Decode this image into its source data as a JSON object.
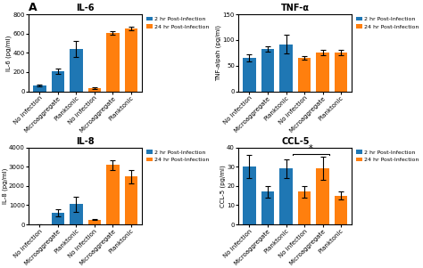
{
  "chart_data": [
    {
      "type": "bar",
      "title": "IL-6",
      "y_label": "IL-6 (pg/ml)",
      "categories": [
        "No infection",
        "Microaggregate",
        "Planktonic",
        "No infection",
        "Microaggregate",
        "Planktonic"
      ],
      "series": [
        {
          "name": "2 hr Post-Infection",
          "values": [
            60,
            210,
            440,
            null,
            null,
            null
          ],
          "errors": [
            12,
            25,
            80,
            null,
            null,
            null
          ]
        },
        {
          "name": "24 hr Post-Infection",
          "values": [
            null,
            null,
            null,
            30,
            605,
            650
          ],
          "errors": [
            null,
            null,
            null,
            8,
            18,
            18
          ]
        }
      ],
      "ylim": [
        0,
        800
      ],
      "yticks": [
        0,
        200,
        400,
        600,
        800
      ],
      "legend": "upper right",
      "annotations": [
        {
          "text": "A"
        }
      ]
    },
    {
      "type": "bar",
      "title": "TNF-α",
      "y_label": "TNF-alpah (pg/ml)",
      "categories": [
        "No infection",
        "Microaggregate",
        "Planktonic",
        "No infection",
        "Microaggregate",
        "Planktonic"
      ],
      "series": [
        {
          "name": "2 hr Post-Infection",
          "values": [
            65,
            83,
            92,
            null,
            null,
            null
          ],
          "errors": [
            7,
            5,
            18,
            null,
            null,
            null
          ]
        },
        {
          "name": "24 hr Post-Infection",
          "values": [
            null,
            null,
            null,
            65,
            76,
            76
          ],
          "errors": [
            null,
            null,
            null,
            3,
            5,
            5
          ]
        }
      ],
      "ylim": [
        0,
        150
      ],
      "yticks": [
        0,
        50,
        100,
        150
      ],
      "legend": "upper right"
    },
    {
      "type": "bar",
      "title": "IL-8",
      "y_label": "IL-8 (pg/ml)",
      "categories": [
        "No infection",
        "Microaggregate",
        "Planktonic",
        "No infection",
        "Microaggregate",
        "Planktonic"
      ],
      "series": [
        {
          "name": "2 hr Post-Infection",
          "values": [
            5,
            620,
            1050,
            null,
            null,
            null
          ],
          "errors": [
            2,
            180,
            380,
            null,
            null,
            null
          ]
        },
        {
          "name": "24 hr Post-Infection",
          "values": [
            null,
            null,
            null,
            250,
            3100,
            2500
          ],
          "errors": [
            null,
            null,
            null,
            30,
            250,
            350
          ]
        }
      ],
      "ylim": [
        0,
        4000
      ],
      "yticks": [
        0,
        1000,
        2000,
        3000,
        4000
      ],
      "legend": "upper right"
    },
    {
      "type": "bar",
      "title": "CCL-5",
      "y_label": "CCL-5 (pg/ml)",
      "categories": [
        "No infection",
        "Microaggregate",
        "Planktonic",
        "No infection",
        "Microaggregate",
        "Planktonic"
      ],
      "series": [
        {
          "name": "2 hr Post-Infection",
          "values": [
            30,
            17,
            29,
            null,
            null,
            null
          ],
          "errors": [
            6,
            3,
            5,
            null,
            null,
            null
          ]
        },
        {
          "name": "24 hr Post-Infection",
          "values": [
            null,
            null,
            null,
            17,
            29,
            15
          ],
          "errors": [
            null,
            null,
            null,
            3,
            6,
            2
          ]
        }
      ],
      "ylim": [
        0,
        40
      ],
      "yticks": [
        0,
        10,
        20,
        30,
        40
      ],
      "legend": "upper right",
      "annotations": [
        {
          "text": "*",
          "from": 2,
          "to": 4,
          "y": 36.8
        }
      ]
    }
  ]
}
